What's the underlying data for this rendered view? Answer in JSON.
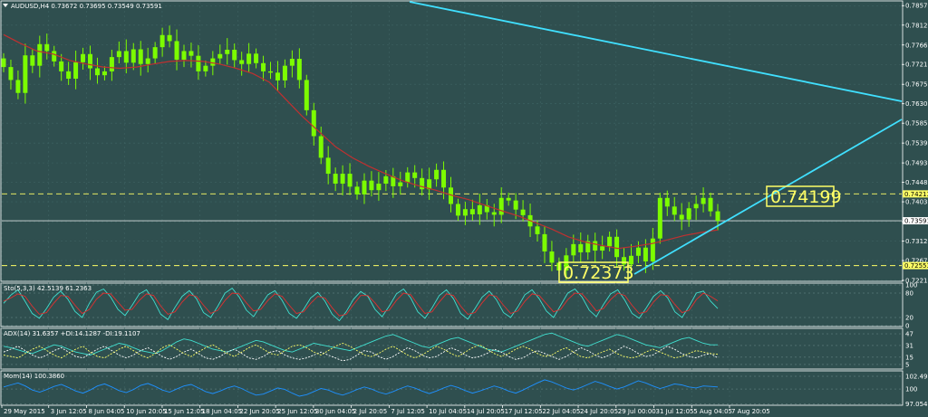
{
  "chart_data": [
    {
      "type": "candlestick",
      "symbol_header": "AUDUSD,H4  0.73672 0.73695 0.73549 0.73591",
      "ylim": [
        0.7221,
        0.7866
      ],
      "y_ticks": [
        "0.78571",
        "0.78120",
        "0.77660",
        "0.77210",
        "0.76750",
        "0.76300",
        "0.75850",
        "0.75390",
        "0.74930",
        "0.74480",
        "0.74030",
        "0.73570",
        "0.73120",
        "0.72670",
        "0.72210"
      ],
      "x_ticks": [
        "29 May 2015",
        "3 Jun 12:05",
        "8 Jun 04:05",
        "10 Jun 20:05",
        "15 Jun 12:05",
        "18 Jun 04:05",
        "22 Jun 20:05",
        "25 Jun 12:05",
        "30 Jun 04:05",
        "2 Jul 20:05",
        "7 Jul 12:05",
        "10 Jul 04:05",
        "14 Jul 20:05",
        "17 Jul 12:05",
        "22 Jul 04:05",
        "24 Jul 20:05",
        "29 Jul 00:00",
        "31 Jul 12:05",
        "5 Aug 04:05",
        "7 Aug 20:05"
      ],
      "closes": [
        0.7715,
        0.7685,
        0.7655,
        0.7742,
        0.7718,
        0.7768,
        0.7752,
        0.7728,
        0.7705,
        0.7688,
        0.7726,
        0.7745,
        0.7712,
        0.7696,
        0.7705,
        0.7738,
        0.7752,
        0.7725,
        0.7756,
        0.7722,
        0.7735,
        0.7761,
        0.7789,
        0.7775,
        0.7732,
        0.7752,
        0.7741,
        0.7705,
        0.7718,
        0.7735,
        0.7745,
        0.7755,
        0.7731,
        0.7722,
        0.7746,
        0.7724,
        0.7705,
        0.7702,
        0.7684,
        0.7718,
        0.7734,
        0.7685,
        0.7615,
        0.7555,
        0.7505,
        0.7468,
        0.7445,
        0.7468,
        0.7438,
        0.742,
        0.7452,
        0.743,
        0.7445,
        0.7462,
        0.7439,
        0.7448,
        0.7471,
        0.7458,
        0.7432,
        0.7455,
        0.7477,
        0.7436,
        0.7398,
        0.7371,
        0.7386,
        0.7374,
        0.7395,
        0.7379,
        0.7373,
        0.7412,
        0.7406,
        0.7385,
        0.7372,
        0.7346,
        0.7328,
        0.7288,
        0.7262,
        0.7244,
        0.7279,
        0.7305,
        0.7286,
        0.7312,
        0.729,
        0.73,
        0.7322,
        0.7275,
        0.7258,
        0.7278,
        0.7297,
        0.7265,
        0.7318,
        0.7412,
        0.7392,
        0.7373,
        0.7362,
        0.7388,
        0.7398,
        0.7412,
        0.7381,
        0.7359
      ],
      "ma_closes": [
        0.779,
        0.777,
        0.7752,
        0.7745,
        0.773,
        0.7722,
        0.7715,
        0.7712,
        0.7715,
        0.7722,
        0.7728,
        0.773,
        0.7728,
        0.7722,
        0.7712,
        0.77,
        0.768,
        0.764,
        0.76,
        0.7565,
        0.753,
        0.7505,
        0.7485,
        0.7468,
        0.7452,
        0.744,
        0.743,
        0.7418,
        0.7408,
        0.7395,
        0.7382,
        0.737,
        0.7355,
        0.734,
        0.7322,
        0.731,
        0.7302,
        0.7295,
        0.73,
        0.7306,
        0.7315,
        0.7325,
        0.7332,
        0.7338
      ],
      "h_lines": [
        {
          "value": 0.74213,
          "tag": "0.74213",
          "color": "#ffff66"
        },
        {
          "value": 0.73591,
          "tag": "0.73591",
          "color": "#ffffff"
        },
        {
          "value": 0.72553,
          "tag": "0.72553",
          "color": "#ffff66"
        }
      ],
      "annotations": [
        {
          "text": "0.74199",
          "value": 0.74199
        },
        {
          "text": "0.72373",
          "value": 0.72373
        }
      ],
      "colors": {
        "up": "#7cfc00",
        "down": "#7cfc00",
        "ma": "#c03030",
        "trendline": "#40e0ff",
        "background": "#2f4f4f"
      }
    },
    {
      "type": "line",
      "label": "Sto(5,3,3) 42.5139 61.2363",
      "ylim": [
        0,
        100
      ],
      "y_ticks": [
        "100",
        "80",
        "20",
        "0"
      ],
      "series": [
        {
          "color": "#40e0d0",
          "values": [
            55,
            75,
            88,
            60,
            30,
            18,
            42,
            70,
            85,
            65,
            35,
            20,
            55,
            82,
            90,
            70,
            40,
            25,
            50,
            78,
            88,
            62,
            28,
            15,
            45,
            72,
            86,
            66,
            32,
            20,
            48,
            80,
            92,
            70,
            38,
            22,
            50,
            76,
            86,
            62,
            30,
            18,
            40,
            68,
            82,
            60,
            28,
            12,
            35,
            65,
            84,
            72,
            40,
            22,
            48,
            78,
            90,
            68,
            34,
            18,
            44,
            74,
            88,
            66,
            30,
            16,
            42,
            70,
            85,
            64,
            32,
            20,
            46,
            76,
            88,
            66,
            36,
            20,
            50,
            80,
            90,
            70,
            38,
            22,
            52,
            78,
            88,
            62,
            30,
            18,
            44,
            72,
            86,
            68,
            34,
            20,
            48,
            80,
            85,
            60,
            42
          ]
        },
        {
          "color": "#e03030",
          "values": [
            60,
            68,
            78,
            72,
            48,
            28,
            32,
            55,
            74,
            72,
            50,
            30,
            40,
            65,
            80,
            78,
            58,
            38,
            40,
            62,
            78,
            74,
            48,
            28,
            34,
            58,
            76,
            72,
            50,
            30,
            38,
            62,
            80,
            78,
            56,
            36,
            40,
            62,
            78,
            72,
            50,
            30,
            34,
            55,
            72,
            68,
            44,
            24,
            28,
            52,
            74,
            74,
            56,
            34,
            38,
            62,
            80,
            76,
            52,
            30,
            34,
            58,
            78,
            74,
            48,
            28,
            32,
            56,
            76,
            72,
            50,
            30,
            36,
            60,
            78,
            74,
            54,
            34,
            40,
            64,
            80,
            78,
            58,
            36,
            42,
            64,
            80,
            74,
            50,
            30,
            34,
            58,
            76,
            74,
            52,
            32,
            38,
            64,
            80,
            72,
            61
          ]
        }
      ]
    },
    {
      "type": "line",
      "label": "ADX(14) 31.6357 +DI:14.1287 -DI:19.1107",
      "ylim": [
        0,
        52
      ],
      "y_ticks": [
        "47",
        "31",
        "15",
        "5"
      ],
      "series": [
        {
          "color": "#40e0d0",
          "values": [
            30,
            28,
            25,
            22,
            20,
            24,
            28,
            32,
            30,
            26,
            22,
            20,
            18,
            22,
            26,
            30,
            34,
            32,
            28,
            24,
            22,
            20,
            24,
            30,
            36,
            40,
            38,
            34,
            30,
            26,
            24,
            22,
            26,
            30,
            34,
            38,
            36,
            32,
            28,
            24,
            22,
            26,
            30,
            34,
            32,
            30,
            28,
            26,
            24,
            28,
            32,
            36,
            40,
            44,
            46,
            42,
            38,
            34,
            30,
            28,
            32,
            36,
            40,
            42,
            38,
            34,
            30,
            26,
            24,
            22,
            26,
            30,
            34,
            38,
            42,
            46,
            48,
            44,
            40,
            36,
            32,
            30,
            34,
            38,
            42,
            46,
            44,
            40,
            36,
            32,
            30,
            28,
            32,
            36,
            40,
            42,
            38,
            34,
            32,
            32
          ]
        },
        {
          "color": "#ffffff",
          "values": [
            22,
            26,
            30,
            24,
            18,
            14,
            18,
            24,
            28,
            22,
            16,
            14,
            20,
            26,
            30,
            24,
            18,
            14,
            18,
            24,
            28,
            22,
            16,
            12,
            16,
            22,
            26,
            20,
            14,
            12,
            16,
            22,
            26,
            20,
            14,
            12,
            16,
            22,
            24,
            18,
            14,
            12,
            14,
            18,
            22,
            18,
            14,
            10,
            12,
            18,
            24,
            22,
            16,
            12,
            16,
            22,
            28,
            24,
            18,
            14,
            16,
            22,
            28,
            24,
            18,
            14,
            16,
            20,
            26,
            22,
            16,
            12,
            14,
            20,
            24,
            20,
            16,
            12,
            16,
            22,
            28,
            24,
            18,
            14,
            18,
            24,
            30,
            26,
            20,
            16,
            18,
            24,
            30,
            26,
            20,
            16,
            14,
            18,
            20,
            14
          ]
        },
        {
          "color": "#ffff66",
          "values": [
            18,
            16,
            14,
            20,
            26,
            30,
            24,
            18,
            14,
            20,
            26,
            30,
            22,
            16,
            14,
            20,
            26,
            30,
            24,
            18,
            14,
            20,
            28,
            32,
            26,
            20,
            16,
            22,
            28,
            32,
            26,
            20,
            16,
            22,
            28,
            32,
            26,
            20,
            18,
            24,
            30,
            32,
            28,
            22,
            18,
            24,
            30,
            34,
            30,
            24,
            18,
            16,
            20,
            26,
            30,
            24,
            18,
            14,
            18,
            24,
            30,
            26,
            20,
            16,
            22,
            28,
            32,
            26,
            20,
            16,
            20,
            26,
            30,
            26,
            20,
            16,
            18,
            24,
            28,
            22,
            16,
            14,
            18,
            22,
            26,
            20,
            16,
            14,
            16,
            22,
            26,
            22,
            18,
            14,
            16,
            20,
            24,
            22,
            20,
            19
          ]
        }
      ]
    },
    {
      "type": "line",
      "label": "Mom(14) 100.3860",
      "ylim": [
        97.0,
        103.2
      ],
      "y_ticks": [
        "102.4921",
        "100",
        "97.0546"
      ],
      "series": [
        {
          "color": "#1e90ff",
          "values": [
            100.4,
            100.8,
            101.2,
            100.6,
            99.8,
            99.4,
            99.9,
            100.5,
            100.9,
            100.3,
            99.6,
            99.2,
            99.8,
            100.6,
            101.0,
            100.4,
            99.7,
            99.3,
            99.9,
            100.7,
            101.1,
            100.5,
            99.8,
            99.4,
            100.0,
            100.6,
            100.9,
            100.2,
            99.5,
            99.1,
            99.6,
            100.2,
            100.6,
            100.1,
            99.4,
            98.8,
            99.0,
            99.6,
            100.2,
            99.9,
            99.2,
            98.6,
            98.9,
            99.5,
            100.1,
            99.8,
            99.2,
            98.8,
            99.3,
            99.9,
            100.4,
            100.0,
            99.4,
            99.0,
            99.5,
            100.1,
            100.6,
            100.2,
            99.6,
            99.1,
            99.6,
            100.2,
            100.7,
            100.3,
            99.7,
            99.2,
            99.6,
            100.1,
            100.6,
            100.2,
            99.6,
            99.2,
            99.8,
            100.5,
            101.2,
            101.8,
            101.4,
            100.8,
            100.2,
            99.8,
            100.3,
            100.9,
            101.5,
            101.1,
            100.5,
            100.0,
            100.4,
            101.0,
            101.6,
            101.2,
            100.6,
            100.1,
            100.5,
            101.0,
            100.8,
            100.4,
            100.2,
            100.6,
            100.5,
            100.4
          ]
        }
      ]
    }
  ]
}
